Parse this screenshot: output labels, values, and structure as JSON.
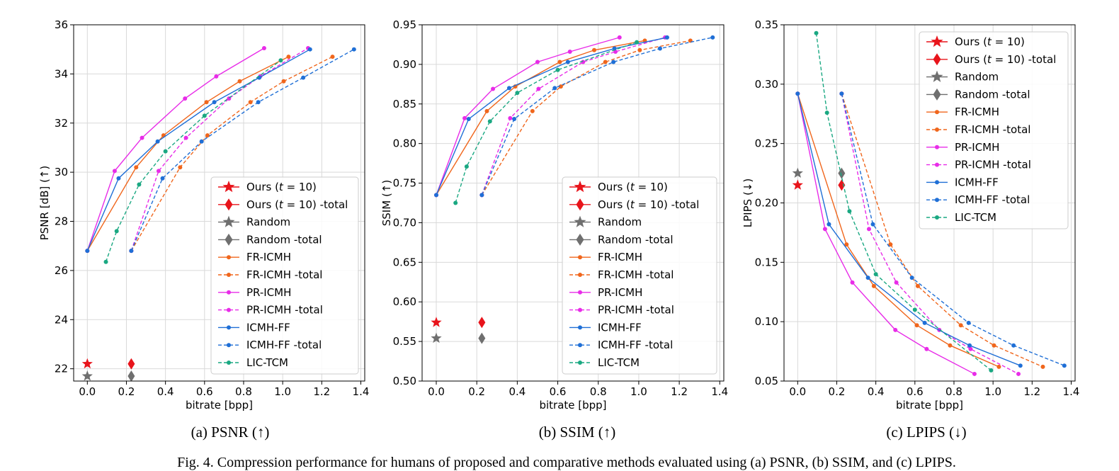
{
  "figure": {
    "caption": "Fig. 4.  Compression performance for humans of proposed and comparative methods evaluated using (a) PSNR, (b) SSIM, and (c) LPIPS."
  },
  "series_styles": [
    {
      "name": "Ours (t = 10)",
      "color": "#e8141b",
      "dashed": false,
      "marker": "star"
    },
    {
      "name": "Ours (t = 10) -total",
      "color": "#e8141b",
      "dashed": false,
      "marker": "diamond"
    },
    {
      "name": "Random",
      "color": "#6f6f6f",
      "dashed": false,
      "marker": "star"
    },
    {
      "name": "Random -total",
      "color": "#6f6f6f",
      "dashed": false,
      "marker": "diamond"
    },
    {
      "name": "FR-ICMH",
      "color": "#f0661c",
      "dashed": false,
      "marker": "dot"
    },
    {
      "name": "FR-ICMH -total",
      "color": "#f0661c",
      "dashed": true,
      "marker": "dot"
    },
    {
      "name": "PR-ICMH",
      "color": "#e82ce8",
      "dashed": false,
      "marker": "dot"
    },
    {
      "name": "PR-ICMH -total",
      "color": "#e82ce8",
      "dashed": true,
      "marker": "dot"
    },
    {
      "name": "ICMH-FF",
      "color": "#1f6fd6",
      "dashed": false,
      "marker": "dot"
    },
    {
      "name": "ICMH-FF -total",
      "color": "#1f6fd6",
      "dashed": true,
      "marker": "dot"
    },
    {
      "name": "LIC-TCM",
      "color": "#1aa882",
      "dashed": true,
      "marker": "dot"
    }
  ],
  "chart_data": [
    {
      "type": "line",
      "caption": "(a) PSNR (↑)",
      "xlabel": "bitrate [bpp]",
      "ylabel": "PSNR [dB] (↑)",
      "xlim": [
        -0.07,
        1.42
      ],
      "ylim": [
        21.5,
        36
      ],
      "xticks": [
        0.0,
        0.2,
        0.4,
        0.6,
        0.8,
        1.0,
        1.2,
        1.4
      ],
      "xtick_labels": [
        "0.0",
        "0.2",
        "0.4",
        "0.6",
        "0.8",
        "1.0",
        "1.2",
        "1.4"
      ],
      "yticks": [
        22,
        24,
        26,
        28,
        30,
        32,
        34,
        36
      ],
      "ytick_labels": [
        "22",
        "24",
        "26",
        "28",
        "30",
        "32",
        "34",
        "36"
      ],
      "grid": true,
      "legend_position": "lower-right",
      "series": [
        {
          "name": "Ours (t = 10)",
          "x": [
            0.0
          ],
          "y": [
            22.2
          ]
        },
        {
          "name": "Ours (t = 10) -total",
          "x": [
            0.225
          ],
          "y": [
            22.2
          ]
        },
        {
          "name": "Random",
          "x": [
            0.0
          ],
          "y": [
            21.7
          ]
        },
        {
          "name": "Random -total",
          "x": [
            0.225
          ],
          "y": [
            21.7
          ]
        },
        {
          "name": "FR-ICMH",
          "x": [
            0.0,
            0.25,
            0.39,
            0.61,
            0.78,
            1.03
          ],
          "y": [
            26.8,
            30.2,
            31.5,
            32.85,
            33.7,
            34.7
          ]
        },
        {
          "name": "FR-ICMH -total",
          "x": [
            0.225,
            0.475,
            0.615,
            0.835,
            1.005,
            1.255
          ],
          "y": [
            26.8,
            30.2,
            31.5,
            32.85,
            33.7,
            34.7
          ]
        },
        {
          "name": "PR-ICMH",
          "x": [
            0.0,
            0.14,
            0.28,
            0.5,
            0.66,
            0.905
          ],
          "y": [
            26.8,
            30.05,
            31.4,
            33.0,
            33.9,
            35.05
          ]
        },
        {
          "name": "PR-ICMH -total",
          "x": [
            0.225,
            0.365,
            0.505,
            0.725,
            0.885,
            1.13
          ],
          "y": [
            26.8,
            30.05,
            31.4,
            33.0,
            33.9,
            35.05
          ]
        },
        {
          "name": "ICMH-FF",
          "x": [
            0.0,
            0.16,
            0.36,
            0.65,
            0.88,
            1.14
          ],
          "y": [
            26.8,
            29.75,
            31.25,
            32.85,
            33.85,
            35.0
          ]
        },
        {
          "name": "ICMH-FF -total",
          "x": [
            0.225,
            0.385,
            0.585,
            0.875,
            1.105,
            1.365
          ],
          "y": [
            26.8,
            29.75,
            31.25,
            32.85,
            33.85,
            35.0
          ]
        },
        {
          "name": "LIC-TCM",
          "x": [
            0.095,
            0.15,
            0.265,
            0.4,
            0.6,
            0.99
          ],
          "y": [
            26.35,
            27.6,
            29.5,
            30.85,
            32.3,
            34.55
          ]
        }
      ]
    },
    {
      "type": "line",
      "caption": "(b) SSIM (↑)",
      "xlabel": "bitrate [bpp]",
      "ylabel": "SSIM (↑)",
      "xlim": [
        -0.07,
        1.42
      ],
      "ylim": [
        0.5,
        0.95
      ],
      "xticks": [
        0.0,
        0.2,
        0.4,
        0.6,
        0.8,
        1.0,
        1.2,
        1.4
      ],
      "xtick_labels": [
        "0.0",
        "0.2",
        "0.4",
        "0.6",
        "0.8",
        "1.0",
        "1.2",
        "1.4"
      ],
      "yticks": [
        0.5,
        0.55,
        0.6,
        0.65,
        0.7,
        0.75,
        0.8,
        0.85,
        0.9,
        0.95
      ],
      "ytick_labels": [
        "0.50",
        "0.55",
        "0.60",
        "0.65",
        "0.70",
        "0.75",
        "0.80",
        "0.85",
        "0.90",
        "0.95"
      ],
      "grid": true,
      "legend_position": "lower-right",
      "series": [
        {
          "name": "Ours (t = 10)",
          "x": [
            0.0
          ],
          "y": [
            0.574
          ]
        },
        {
          "name": "Ours (t = 10) -total",
          "x": [
            0.225
          ],
          "y": [
            0.574
          ]
        },
        {
          "name": "Random",
          "x": [
            0.0
          ],
          "y": [
            0.554
          ]
        },
        {
          "name": "Random -total",
          "x": [
            0.225
          ],
          "y": [
            0.554
          ]
        },
        {
          "name": "FR-ICMH",
          "x": [
            0.0,
            0.25,
            0.39,
            0.61,
            0.78,
            1.03
          ],
          "y": [
            0.735,
            0.841,
            0.872,
            0.903,
            0.918,
            0.93
          ]
        },
        {
          "name": "FR-ICMH -total",
          "x": [
            0.225,
            0.475,
            0.615,
            0.835,
            1.005,
            1.255
          ],
          "y": [
            0.735,
            0.841,
            0.872,
            0.903,
            0.918,
            0.93
          ]
        },
        {
          "name": "PR-ICMH",
          "x": [
            0.0,
            0.14,
            0.28,
            0.5,
            0.66,
            0.905
          ],
          "y": [
            0.735,
            0.832,
            0.869,
            0.903,
            0.916,
            0.934
          ]
        },
        {
          "name": "PR-ICMH -total",
          "x": [
            0.225,
            0.365,
            0.505,
            0.725,
            0.885,
            1.13
          ],
          "y": [
            0.735,
            0.832,
            0.869,
            0.903,
            0.916,
            0.934
          ]
        },
        {
          "name": "ICMH-FF",
          "x": [
            0.0,
            0.16,
            0.36,
            0.65,
            0.88,
            1.14
          ],
          "y": [
            0.735,
            0.831,
            0.87,
            0.903,
            0.92,
            0.934
          ]
        },
        {
          "name": "ICMH-FF -total",
          "x": [
            0.225,
            0.385,
            0.585,
            0.875,
            1.105,
            1.365
          ],
          "y": [
            0.735,
            0.831,
            0.87,
            0.903,
            0.92,
            0.934
          ]
        },
        {
          "name": "LIC-TCM",
          "x": [
            0.095,
            0.15,
            0.265,
            0.4,
            0.6,
            0.99
          ],
          "y": [
            0.725,
            0.771,
            0.828,
            0.864,
            0.893,
            0.928
          ]
        }
      ]
    },
    {
      "type": "line",
      "caption": "(c) LPIPS (↓)",
      "xlabel": "bitrate [bpp]",
      "ylabel": "LPIPS (↓)",
      "xlim": [
        -0.07,
        1.42
      ],
      "ylim": [
        0.05,
        0.35
      ],
      "xticks": [
        0.0,
        0.2,
        0.4,
        0.6,
        0.8,
        1.0,
        1.2,
        1.4
      ],
      "xtick_labels": [
        "0.0",
        "0.2",
        "0.4",
        "0.6",
        "0.8",
        "1.0",
        "1.2",
        "1.4"
      ],
      "yticks": [
        0.05,
        0.1,
        0.15,
        0.2,
        0.25,
        0.3,
        0.35
      ],
      "ytick_labels": [
        "0.05",
        "0.10",
        "0.15",
        "0.20",
        "0.25",
        "0.30",
        "0.35"
      ],
      "grid": true,
      "legend_position": "upper-right",
      "series": [
        {
          "name": "Ours (t = 10)",
          "x": [
            0.0
          ],
          "y": [
            0.215
          ]
        },
        {
          "name": "Ours (t = 10) -total",
          "x": [
            0.225
          ],
          "y": [
            0.215
          ]
        },
        {
          "name": "Random",
          "x": [
            0.0
          ],
          "y": [
            0.225
          ]
        },
        {
          "name": "Random -total",
          "x": [
            0.225
          ],
          "y": [
            0.225
          ]
        },
        {
          "name": "FR-ICMH",
          "x": [
            0.0,
            0.25,
            0.39,
            0.61,
            0.78,
            1.03
          ],
          "y": [
            0.292,
            0.165,
            0.13,
            0.097,
            0.08,
            0.062
          ]
        },
        {
          "name": "FR-ICMH -total",
          "x": [
            0.225,
            0.475,
            0.615,
            0.835,
            1.005,
            1.255
          ],
          "y": [
            0.292,
            0.165,
            0.13,
            0.097,
            0.08,
            0.062
          ]
        },
        {
          "name": "PR-ICMH",
          "x": [
            0.0,
            0.14,
            0.28,
            0.5,
            0.66,
            0.905
          ],
          "y": [
            0.292,
            0.178,
            0.133,
            0.093,
            0.077,
            0.056
          ]
        },
        {
          "name": "PR-ICMH -total",
          "x": [
            0.225,
            0.365,
            0.505,
            0.725,
            0.885,
            1.13
          ],
          "y": [
            0.292,
            0.178,
            0.133,
            0.093,
            0.077,
            0.056
          ]
        },
        {
          "name": "ICMH-FF",
          "x": [
            0.0,
            0.16,
            0.36,
            0.65,
            0.88,
            1.14
          ],
          "y": [
            0.292,
            0.182,
            0.137,
            0.099,
            0.08,
            0.063
          ]
        },
        {
          "name": "ICMH-FF -total",
          "x": [
            0.225,
            0.385,
            0.585,
            0.875,
            1.105,
            1.365
          ],
          "y": [
            0.292,
            0.182,
            0.137,
            0.099,
            0.08,
            0.063
          ]
        },
        {
          "name": "LIC-TCM",
          "x": [
            0.095,
            0.15,
            0.265,
            0.4,
            0.6,
            0.99
          ],
          "y": [
            0.343,
            0.276,
            0.193,
            0.14,
            0.11,
            0.059
          ]
        }
      ]
    }
  ]
}
